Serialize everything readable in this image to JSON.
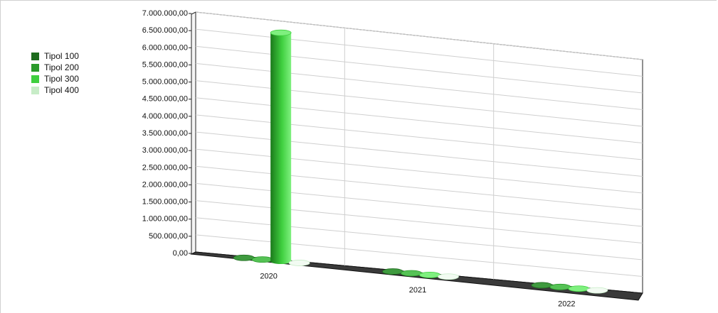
{
  "chart_data": {
    "type": "bar",
    "title": "",
    "xlabel": "",
    "ylabel": "",
    "categories": [
      "2020",
      "2021",
      "2022"
    ],
    "series": [
      {
        "name": "Tipol 100",
        "values": [
          0,
          0,
          0
        ]
      },
      {
        "name": "Tipol 200",
        "values": [
          0,
          0,
          0
        ]
      },
      {
        "name": "Tipol 300",
        "values": [
          6700000,
          0,
          0
        ]
      },
      {
        "name": "Tipol 400",
        "values": [
          0,
          0,
          0
        ]
      }
    ],
    "ylim": [
      0,
      7000000
    ],
    "yticks": [
      "0,00",
      "500.000,00",
      "1.000.000,00",
      "1.500.000,00",
      "2.000.000,00",
      "2.500.000,00",
      "3.000.000,00",
      "3.500.000,00",
      "4.000.000,00",
      "4.500.000,00",
      "5.000.000,00",
      "5.500.000,00",
      "6.000.000,00",
      "6.500.000,00",
      "7.000.000,00"
    ],
    "legend_position": "top-left",
    "grid": true,
    "colors": {
      "series": [
        "#1e6b1e",
        "#2a9a2a",
        "#3fcf3f",
        "#c7ecc7"
      ],
      "dark": [
        "#0e3d0e",
        "#145a14",
        "#1b7a1b",
        "#8fbf8f"
      ],
      "light": [
        "#3f9a3f",
        "#55c255",
        "#7ff07f",
        "#f2fbf2"
      ]
    }
  }
}
